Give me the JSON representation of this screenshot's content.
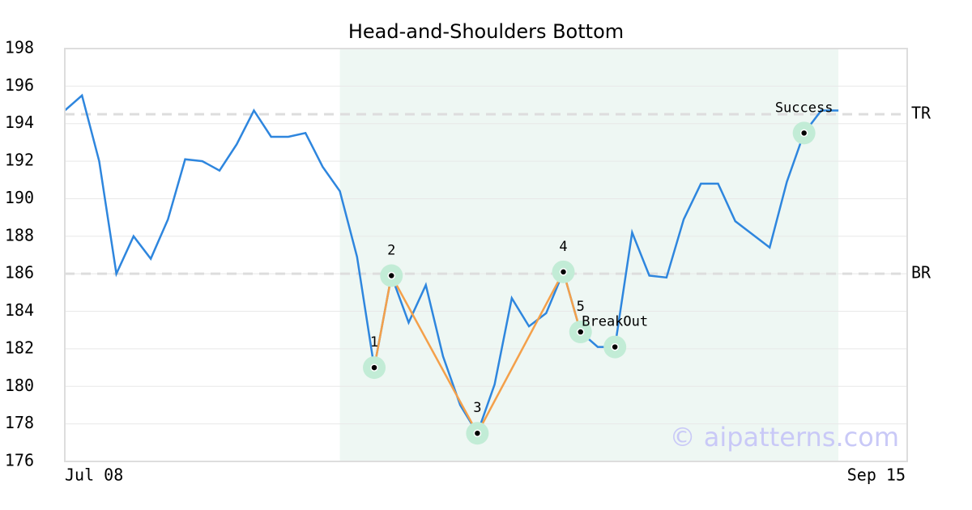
{
  "chart_data": {
    "type": "line",
    "title": "Head-and-Shoulders Bottom",
    "x": [
      0,
      1,
      2,
      3,
      4,
      5,
      6,
      7,
      8,
      9,
      10,
      11,
      12,
      13,
      14,
      15,
      16,
      17,
      18,
      19,
      20,
      21,
      22,
      23,
      24,
      25,
      26,
      27,
      28,
      29,
      30,
      31,
      32,
      33,
      34,
      35,
      36,
      37,
      38,
      39,
      40,
      41,
      42,
      43,
      44,
      45
    ],
    "series": [
      {
        "color": "#2e86de",
        "values": [
          194.7,
          195.5,
          192.0,
          186.0,
          188.0,
          186.8,
          188.9,
          192.1,
          192.0,
          191.5,
          192.9,
          194.7,
          193.3,
          193.3,
          193.5,
          191.7,
          190.4,
          186.9,
          181.0,
          185.9,
          183.4,
          185.4,
          181.6,
          179.0,
          177.5,
          180.1,
          184.7,
          183.2,
          183.9,
          186.1,
          182.9,
          182.1,
          182.1,
          188.2,
          185.9,
          185.8,
          188.9,
          190.8,
          190.8,
          188.8,
          188.1,
          187.4,
          190.9,
          193.5,
          194.7,
          194.7
        ]
      }
    ],
    "xlim": [
      0,
      49
    ],
    "xticks": [
      {
        "value": 0,
        "label": "Jul 08"
      },
      {
        "value": 49,
        "label": "Sep 15"
      }
    ],
    "ylim": [
      176,
      198
    ],
    "yticks": [
      176,
      178,
      180,
      182,
      184,
      186,
      188,
      190,
      192,
      194,
      196,
      198
    ],
    "grid": true,
    "highlight": [
      16,
      45
    ],
    "highlight_color": "#eef7f3",
    "pattern_color": "#f4a04a",
    "marker_color": "#c2ecd6",
    "pattern": [
      {
        "label": "1",
        "x": 18,
        "y": 181.0
      },
      {
        "label": "2",
        "x": 19,
        "y": 185.9
      },
      {
        "label": "3",
        "x": 24,
        "y": 177.5
      },
      {
        "label": "4",
        "x": 29,
        "y": 186.1
      },
      {
        "label": "5",
        "x": 30,
        "y": 182.9
      }
    ],
    "signals": [
      {
        "label": "BreakOut",
        "x": 32,
        "y": 182.1
      },
      {
        "label": "Success",
        "x": 43,
        "y": 193.5
      }
    ],
    "reference_lines": [
      {
        "label": "TR",
        "value": 194.5
      },
      {
        "label": "BR",
        "value": 186.0
      }
    ],
    "watermark": "© aipatterns.com"
  }
}
